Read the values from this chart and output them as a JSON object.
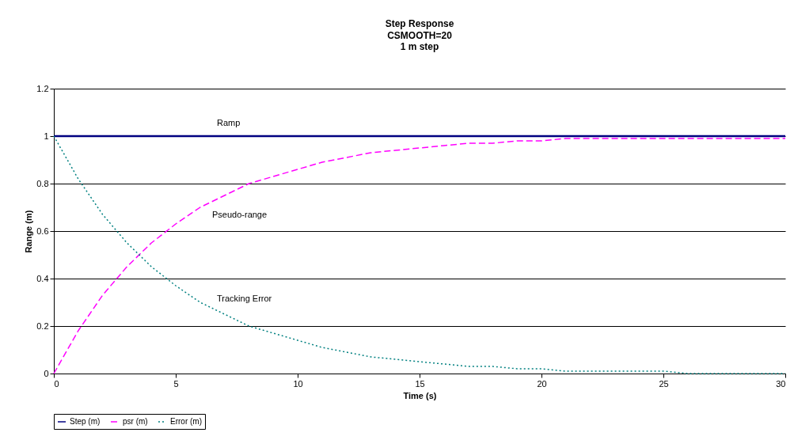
{
  "chart_data": {
    "type": "line",
    "title": "Step Response",
    "subtitle": "CSMOOTH=20\n1 m step",
    "xlabel": "Time (s)",
    "ylabel": "Range (m)",
    "x": [
      0,
      1,
      2,
      3,
      4,
      5,
      6,
      7,
      8,
      9,
      10,
      11,
      12,
      13,
      14,
      15,
      16,
      17,
      18,
      19,
      20,
      21,
      22,
      23,
      24,
      25,
      26,
      27,
      28,
      29,
      30
    ],
    "series": [
      {
        "name": "Step (m)",
        "color": "#000080",
        "line_style": "solid",
        "x": [
          0,
          30
        ],
        "values": [
          1,
          1
        ]
      },
      {
        "name": "psr (m)",
        "color": "#ff00ff",
        "line_style": "dashed",
        "values": [
          0,
          0.18,
          0.33,
          0.45,
          0.55,
          0.63,
          0.7,
          0.75,
          0.8,
          0.83,
          0.86,
          0.89,
          0.91,
          0.93,
          0.94,
          0.95,
          0.96,
          0.97,
          0.97,
          0.98,
          0.98,
          0.99,
          0.99,
          0.99,
          0.99,
          0.99,
          0.99,
          0.99,
          0.99,
          0.99,
          0.99
        ]
      },
      {
        "name": "Error (m)",
        "color": "#008080",
        "line_style": "dotted",
        "values": [
          1,
          0.82,
          0.67,
          0.55,
          0.45,
          0.37,
          0.3,
          0.25,
          0.2,
          0.17,
          0.14,
          0.11,
          0.09,
          0.07,
          0.06,
          0.05,
          0.04,
          0.03,
          0.03,
          0.02,
          0.02,
          0.01,
          0.01,
          0.01,
          0.01,
          0.01,
          0,
          0,
          0,
          0,
          0
        ]
      }
    ],
    "annotations": [
      "Ramp",
      "Pseudo-range",
      "Tracking Error"
    ],
    "xlim": [
      0,
      30
    ],
    "xticks": [
      0,
      5,
      10,
      15,
      20,
      25,
      30
    ],
    "ylim": [
      0,
      1.2
    ],
    "yticks": [
      0,
      0.2,
      0.4,
      0.6,
      0.8,
      1,
      1.2
    ],
    "grid": "y",
    "legend": "bottom",
    "marker": "none"
  }
}
